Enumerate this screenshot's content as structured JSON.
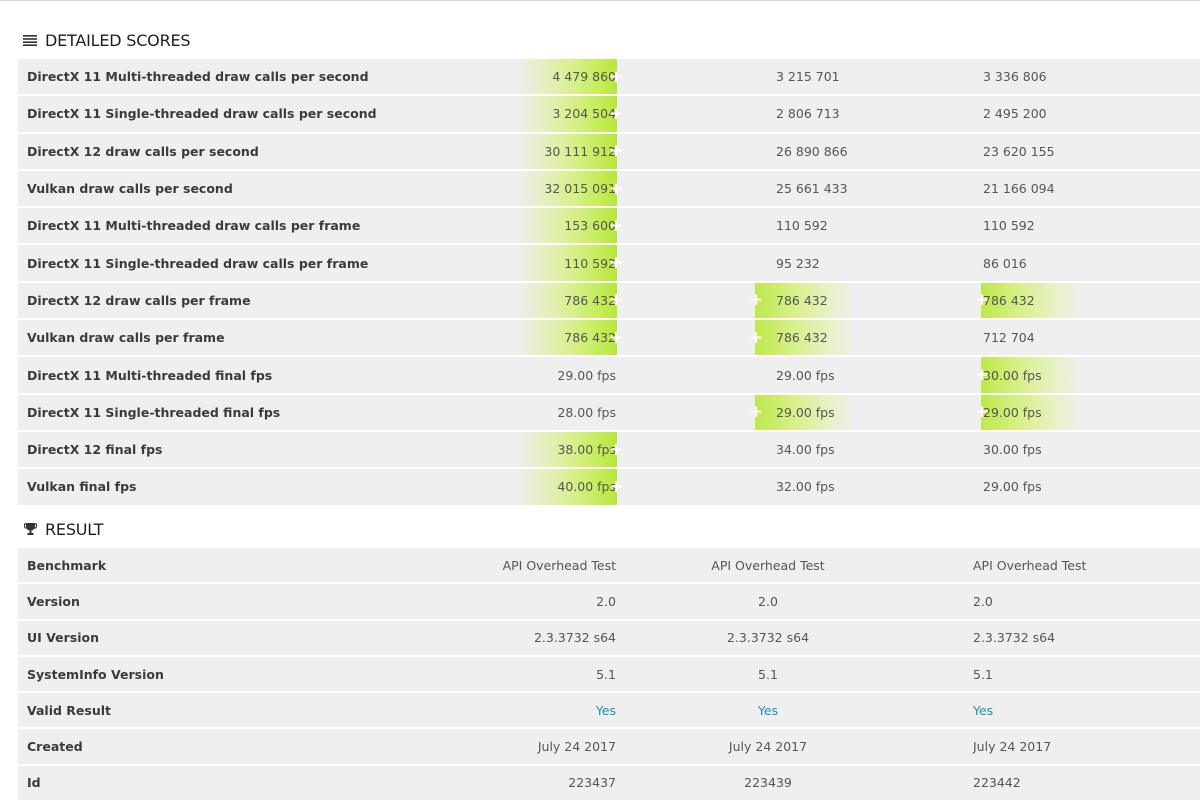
{
  "scores": {
    "title": "DETAILED SCORES",
    "rows": [
      {
        "label": "DirectX 11 Multi-threaded draw calls per second",
        "values": [
          "4 479 860",
          "3 215 701",
          "3 336 806"
        ],
        "highlight": [
          true,
          false,
          false
        ]
      },
      {
        "label": "DirectX 11 Single-threaded draw calls per second",
        "values": [
          "3 204 504",
          "2 806 713",
          "2 495 200"
        ],
        "highlight": [
          true,
          false,
          false
        ]
      },
      {
        "label": "DirectX 12 draw calls per second",
        "values": [
          "30 111 912",
          "26 890 866",
          "23 620 155"
        ],
        "highlight": [
          true,
          false,
          false
        ]
      },
      {
        "label": "Vulkan draw calls per second",
        "values": [
          "32 015 091",
          "25 661 433",
          "21 166 094"
        ],
        "highlight": [
          true,
          false,
          false
        ]
      },
      {
        "label": "DirectX 11 Multi-threaded draw calls per frame",
        "values": [
          "153 600",
          "110 592",
          "110 592"
        ],
        "highlight": [
          true,
          false,
          false
        ]
      },
      {
        "label": "DirectX 11 Single-threaded draw calls per frame",
        "values": [
          "110 592",
          "95 232",
          "86 016"
        ],
        "highlight": [
          true,
          false,
          false
        ]
      },
      {
        "label": "DirectX 12 draw calls per frame",
        "values": [
          "786 432",
          "786 432",
          "786 432"
        ],
        "highlight": [
          true,
          true,
          true
        ]
      },
      {
        "label": "Vulkan draw calls per frame",
        "values": [
          "786 432",
          "786 432",
          "712 704"
        ],
        "highlight": [
          true,
          true,
          false
        ]
      },
      {
        "label": "DirectX 11 Multi-threaded final fps",
        "values": [
          "29.00 fps",
          "29.00 fps",
          "30.00 fps"
        ],
        "highlight": [
          false,
          false,
          true
        ]
      },
      {
        "label": "DirectX 11 Single-threaded final fps",
        "values": [
          "28.00 fps",
          "29.00 fps",
          "29.00 fps"
        ],
        "highlight": [
          false,
          true,
          true
        ]
      },
      {
        "label": "DirectX 12 final fps",
        "values": [
          "38.00 fps",
          "34.00 fps",
          "30.00 fps"
        ],
        "highlight": [
          true,
          false,
          false
        ]
      },
      {
        "label": "Vulkan final fps",
        "values": [
          "40.00 fps",
          "32.00 fps",
          "29.00 fps"
        ],
        "highlight": [
          true,
          false,
          false
        ]
      }
    ]
  },
  "result": {
    "title": "RESULT",
    "rows": [
      {
        "label": "Benchmark",
        "values": [
          "API Overhead Test",
          "API Overhead Test",
          "API Overhead Test"
        ],
        "link": false
      },
      {
        "label": "Version",
        "values": [
          "2.0",
          "2.0",
          "2.0"
        ],
        "link": false
      },
      {
        "label": "UI Version",
        "values": [
          "2.3.3732 s64",
          "2.3.3732 s64",
          "2.3.3732 s64"
        ],
        "link": false
      },
      {
        "label": "SystemInfo Version",
        "values": [
          "5.1",
          "5.1",
          "5.1"
        ],
        "link": false
      },
      {
        "label": "Valid Result",
        "values": [
          "Yes",
          "Yes",
          "Yes"
        ],
        "link": true
      },
      {
        "label": "Created",
        "values": [
          "July 24 2017",
          "July 24 2017",
          "July 24 2017"
        ],
        "link": false
      },
      {
        "label": "Id",
        "values": [
          "223437",
          "223439",
          "223442"
        ],
        "link": false
      }
    ]
  },
  "colors": {
    "highlight": "#c6ec59",
    "link": "#1f8fb2",
    "row_bg": "#efefef"
  },
  "icons": {
    "scores": "list-icon",
    "result": "trophy-icon",
    "better": "plus-icon"
  }
}
